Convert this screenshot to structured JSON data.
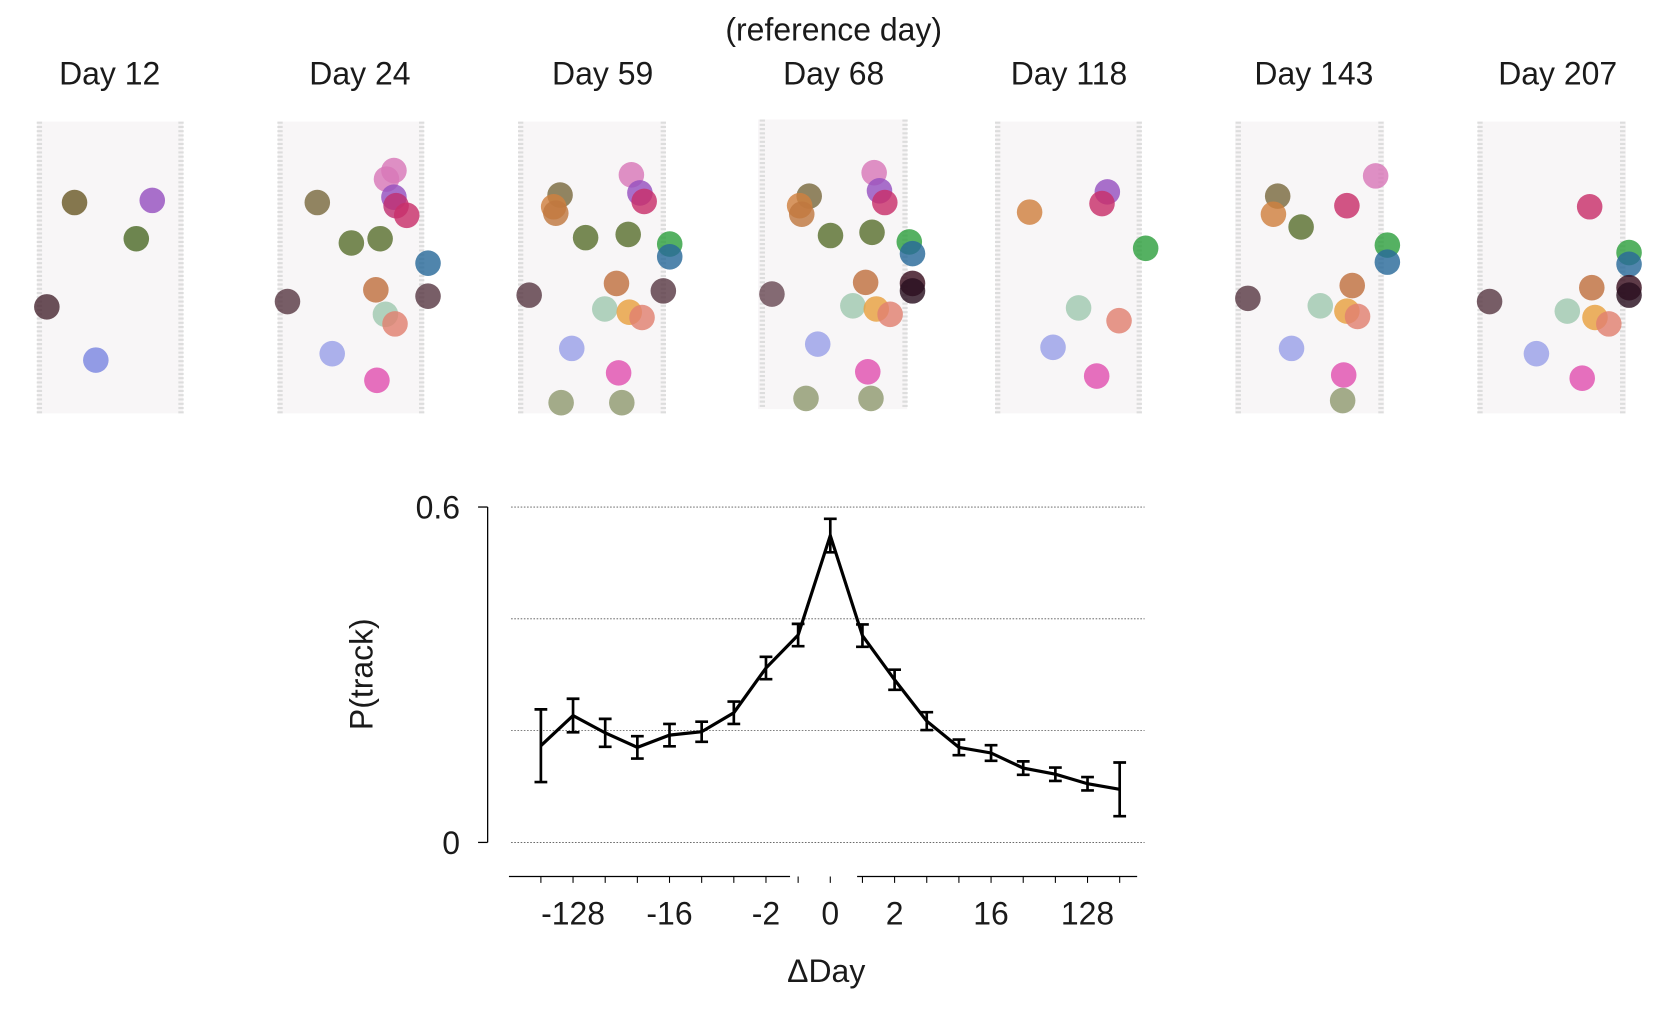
{
  "chart_data": {
    "type": "line",
    "header": "(reference day)",
    "panel_titles": [
      "Day 12",
      "Day 24",
      "Day 59",
      "Day 68",
      "Day 118",
      "Day 143",
      "Day 207"
    ],
    "reference_panel": 3,
    "x_label": "ΔDay",
    "y_label": "P(track)",
    "categories": [
      null,
      "-128",
      null,
      null,
      "-16",
      null,
      null,
      "-2",
      null,
      "0",
      null,
      "2",
      null,
      null,
      "16",
      null,
      null,
      "128",
      null
    ],
    "series": [
      {
        "color": "#000000",
        "values": [
          0.173,
          0.227,
          0.196,
          0.17,
          0.192,
          0.198,
          0.232,
          0.312,
          0.371,
          0.549,
          0.37,
          0.291,
          0.217,
          0.17,
          0.16,
          0.133,
          0.122,
          0.105,
          0.095
        ],
        "errors": [
          0.065,
          0.03,
          0.025,
          0.02,
          0.02,
          0.018,
          0.02,
          0.02,
          0.02,
          0.03,
          0.02,
          0.018,
          0.016,
          0.014,
          0.014,
          0.012,
          0.012,
          0.012,
          0.048
        ]
      }
    ],
    "ylim": [
      0,
      0.6
    ],
    "yticks": [
      0,
      0.6
    ],
    "ygrid": [
      0,
      0.2,
      0.4,
      0.6
    ],
    "grid": true
  }
}
